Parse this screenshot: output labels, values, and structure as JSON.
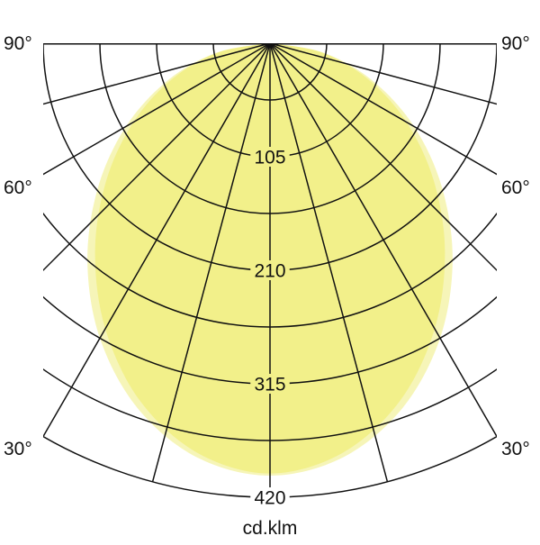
{
  "chart_data": {
    "type": "polar",
    "unit_label": "cd.klm",
    "radial_ticks": [
      105,
      210,
      315,
      420
    ],
    "radial_grid_step": 52.5,
    "radial_max": 420,
    "angle_grid_step_deg": 15,
    "angle_labels": [
      "90°",
      "60°",
      "30°"
    ],
    "angle_label_values": [
      90,
      60,
      30
    ],
    "symmetric": true,
    "series": [
      {
        "color": "#f6f5b8",
        "angles_deg": [
          0,
          10,
          20,
          30,
          40,
          50,
          60,
          70,
          80,
          90
        ],
        "values": [
          400,
          389,
          359,
          315,
          263,
          208,
          154,
          101,
          50,
          0
        ]
      },
      {
        "color": "#f2f08a",
        "angles_deg": [
          0,
          10,
          20,
          30,
          40,
          50,
          60,
          70,
          80,
          90
        ],
        "values": [
          398,
          385,
          352,
          305,
          252,
          198,
          146,
          96,
          48,
          0
        ]
      }
    ]
  }
}
